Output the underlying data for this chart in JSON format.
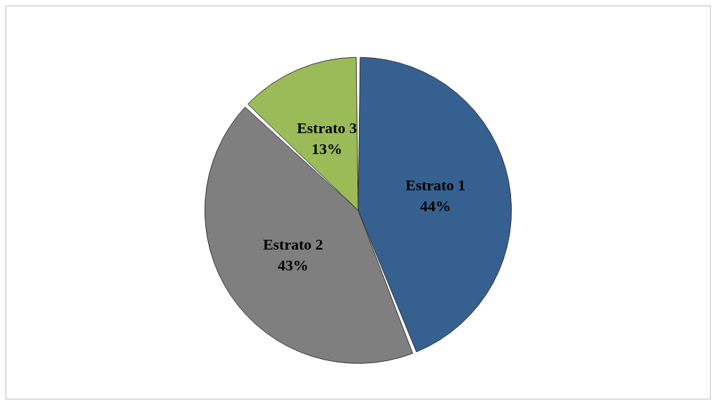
{
  "chart_data": {
    "type": "pie",
    "categories": [
      "Estrato 1",
      "Estrato 2",
      "Estrato 3"
    ],
    "values": [
      44,
      43,
      13
    ],
    "value_labels": [
      "44%",
      "43%",
      "13%"
    ],
    "colors": [
      "#36608f",
      "#7f7f7f",
      "#9bbb59"
    ],
    "legend": false
  }
}
